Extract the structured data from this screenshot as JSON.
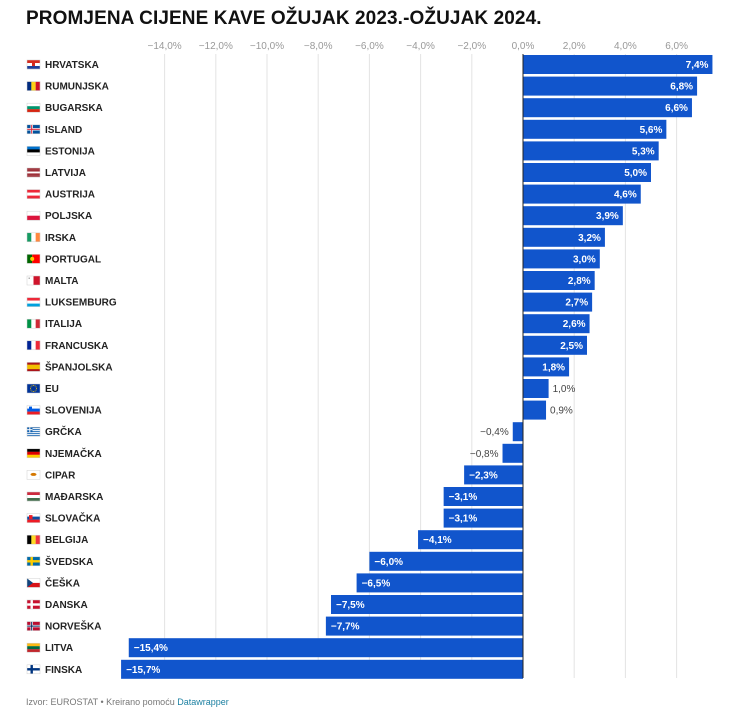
{
  "header": {
    "title": "PROMJENA CIJENE KAVE OŽUJAK 2023.-OŽUJAK 2024."
  },
  "footer": {
    "source": "Izvor: EUROSTAT • Kreirano pomoću",
    "credit": "Datawrapper"
  },
  "colors": {
    "bar": "#1155cc",
    "grid": "#e3e3e3",
    "axis": "#222222",
    "tick": "#999999"
  },
  "chart_data": {
    "type": "bar",
    "orientation": "horizontal",
    "title": "PROMJENA CIJENE KAVE OŽUJAK 2023.-OŽUJAK 2024.",
    "xlim": [
      -15.7,
      7.4
    ],
    "ticks": [
      -14,
      -12,
      -10,
      -8,
      -6,
      -4,
      -2,
      0,
      2,
      4,
      6
    ],
    "tick_labels": [
      "−14,0%",
      "−12,0%",
      "−10,0%",
      "−8,0%",
      "−6,0%",
      "−4,0%",
      "−2,0%",
      "0,0%",
      "2,0%",
      "4,0%",
      "6,0%"
    ],
    "grid": true,
    "categories": [
      "HRVATSKA",
      "RUMUNJSKA",
      "BUGARSKA",
      "ISLAND",
      "ESTONIJA",
      "LATVIJA",
      "AUSTRIJA",
      "POLJSKA",
      "IRSKA",
      "PORTUGAL",
      "MALTA",
      "LUKSEMBURG",
      "ITALIJA",
      "FRANCUSKA",
      "ŠPANJOLSKA",
      "EU",
      "SLOVENIJA",
      "GRČKA",
      "NJEMAČKA",
      "CIPAR",
      "MAĐARSKA",
      "SLOVAČKA",
      "BELGIJA",
      "ŠVEDSKA",
      "ČEŠKA",
      "DANSKA",
      "NORVEŠKA",
      "LITVA",
      "FINSKA"
    ],
    "values": [
      7.4,
      6.8,
      6.6,
      5.6,
      5.3,
      5.0,
      4.6,
      3.9,
      3.2,
      3.0,
      2.8,
      2.7,
      2.6,
      2.5,
      1.8,
      1.0,
      0.9,
      -0.4,
      -0.8,
      -2.3,
      -3.1,
      -3.1,
      -4.1,
      -6.0,
      -6.5,
      -7.5,
      -7.7,
      -15.4,
      -15.7
    ],
    "value_labels": [
      "7,4%",
      "6,8%",
      "6,6%",
      "5,6%",
      "5,3%",
      "5,0%",
      "4,6%",
      "3,9%",
      "3,2%",
      "3,0%",
      "2,8%",
      "2,7%",
      "2,6%",
      "2,5%",
      "1,8%",
      "1,0%",
      "0,9%",
      "−0,4%",
      "−0,8%",
      "−2,3%",
      "−3,1%",
      "−3,1%",
      "−4,1%",
      "−6,0%",
      "−6,5%",
      "−7,5%",
      "−7,7%",
      "−15,4%",
      "−15,7%"
    ],
    "flags": [
      "flag-hr-icon",
      "flag-ro-icon",
      "flag-bg-icon",
      "flag-is-icon",
      "flag-ee-icon",
      "flag-lv-icon",
      "flag-at-icon",
      "flag-pl-icon",
      "flag-ie-icon",
      "flag-pt-icon",
      "flag-mt-icon",
      "flag-lu-icon",
      "flag-it-icon",
      "flag-fr-icon",
      "flag-es-icon",
      "flag-eu-icon",
      "flag-si-icon",
      "flag-gr-icon",
      "flag-de-icon",
      "flag-cy-icon",
      "flag-hu-icon",
      "flag-sk-icon",
      "flag-be-icon",
      "flag-se-icon",
      "flag-cz-icon",
      "flag-dk-icon",
      "flag-no-icon",
      "flag-lt-icon",
      "flag-fi-icon"
    ]
  }
}
